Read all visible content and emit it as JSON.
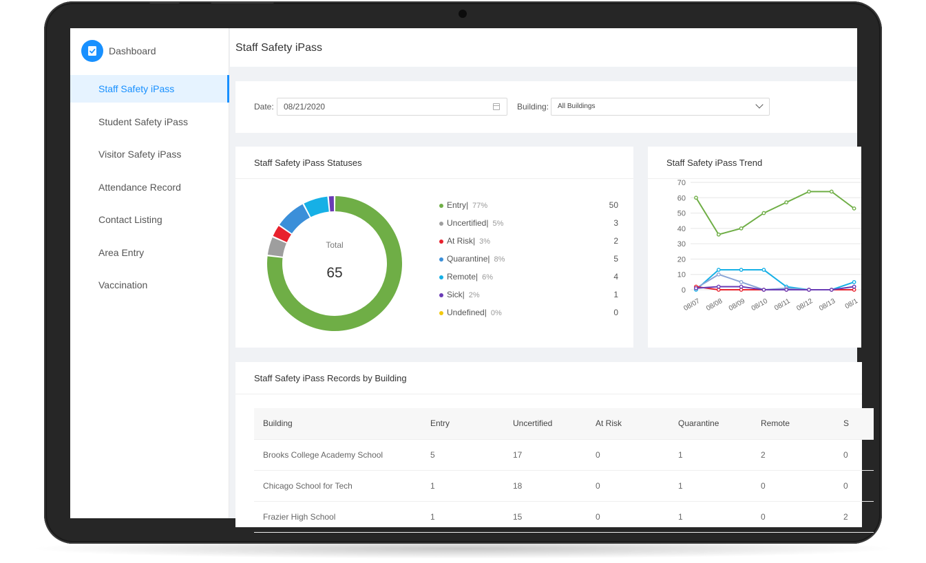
{
  "brand": {
    "label": "Dashboard",
    "icon": "clipboard-check-icon",
    "color": "#1890ff"
  },
  "sidebar": {
    "items": [
      {
        "label": "Staff Safety iPass",
        "active": true
      },
      {
        "label": "Student Safety iPass"
      },
      {
        "label": "Visitor Safety iPass"
      },
      {
        "label": "Attendance Record"
      },
      {
        "label": "Contact Listing"
      },
      {
        "label": "Area Entry"
      },
      {
        "label": "Vaccination"
      }
    ]
  },
  "header": {
    "title": "Staff Safety iPass"
  },
  "filters": {
    "date_label": "Date:",
    "date_value": "08/21/2020",
    "building_label": "Building:",
    "building_value": "All Buildings"
  },
  "statuses": {
    "title": "Staff Safety iPass Statuses",
    "total_label": "Total",
    "total_value": "65",
    "items": [
      {
        "name": "Entry|",
        "pct": "77%",
        "count": "50",
        "color": "#6fae46"
      },
      {
        "name": "Uncertified|",
        "pct": "5%",
        "count": "3",
        "color": "#9e9e9e"
      },
      {
        "name": "At Risk|",
        "pct": "3%",
        "count": "2",
        "color": "#e8212d"
      },
      {
        "name": "Quarantine|",
        "pct": "8%",
        "count": "5",
        "color": "#3b8fd9"
      },
      {
        "name": "Remote|",
        "pct": "6%",
        "count": "4",
        "color": "#16b0e6"
      },
      {
        "name": "Sick|",
        "pct": "2%",
        "count": "1",
        "color": "#6a3bb5"
      },
      {
        "name": "Undefined|",
        "pct": "0%",
        "count": "0",
        "color": "#f2c80f"
      }
    ]
  },
  "trend": {
    "title": "Staff Safety iPass Trend"
  },
  "records": {
    "title": "Staff Safety iPass Records by Building",
    "columns": [
      "Building",
      "Entry",
      "Uncertified",
      "At Risk",
      "Quarantine",
      "Remote",
      "S"
    ],
    "rows": [
      [
        "Brooks College Academy School",
        "5",
        "17",
        "0",
        "1",
        "2",
        "0"
      ],
      [
        "Chicago School for Tech",
        "1",
        "18",
        "0",
        "1",
        "0",
        "0"
      ],
      [
        "Frazier High School",
        "1",
        "15",
        "0",
        "1",
        "0",
        "2"
      ]
    ]
  },
  "chart_data": [
    {
      "type": "pie",
      "title": "Staff Safety iPass Statuses",
      "categories": [
        "Entry",
        "Uncertified",
        "At Risk",
        "Quarantine",
        "Remote",
        "Sick",
        "Undefined"
      ],
      "values": [
        50,
        3,
        2,
        5,
        4,
        1,
        0
      ],
      "colors": [
        "#6fae46",
        "#9e9e9e",
        "#e8212d",
        "#3b8fd9",
        "#16b0e6",
        "#6a3bb5",
        "#f2c80f"
      ]
    },
    {
      "type": "line",
      "title": "Staff Safety iPass Trend",
      "categories": [
        "08/07",
        "08/08",
        "08/09",
        "08/10",
        "08/11",
        "08/12",
        "08/13",
        "08/1"
      ],
      "ylim": [
        0,
        70
      ],
      "yticks": [
        0,
        10,
        20,
        30,
        40,
        50,
        60,
        70
      ],
      "grid": true,
      "series": [
        {
          "color": "#6fae46",
          "values": [
            60,
            36,
            40,
            50,
            57,
            64,
            64,
            53
          ]
        },
        {
          "color": "#16b0e6",
          "values": [
            0,
            13,
            13,
            13,
            2,
            0,
            0,
            5
          ]
        },
        {
          "color": "#8aa4d6",
          "values": [
            1,
            10,
            5,
            0,
            1,
            0,
            0,
            2
          ]
        },
        {
          "color": "#e8212d",
          "values": [
            2,
            0,
            0,
            0,
            0,
            0,
            0,
            0
          ]
        },
        {
          "color": "#6a3bb5",
          "values": [
            1,
            2,
            2,
            0,
            0,
            0,
            0,
            2
          ]
        }
      ]
    }
  ]
}
